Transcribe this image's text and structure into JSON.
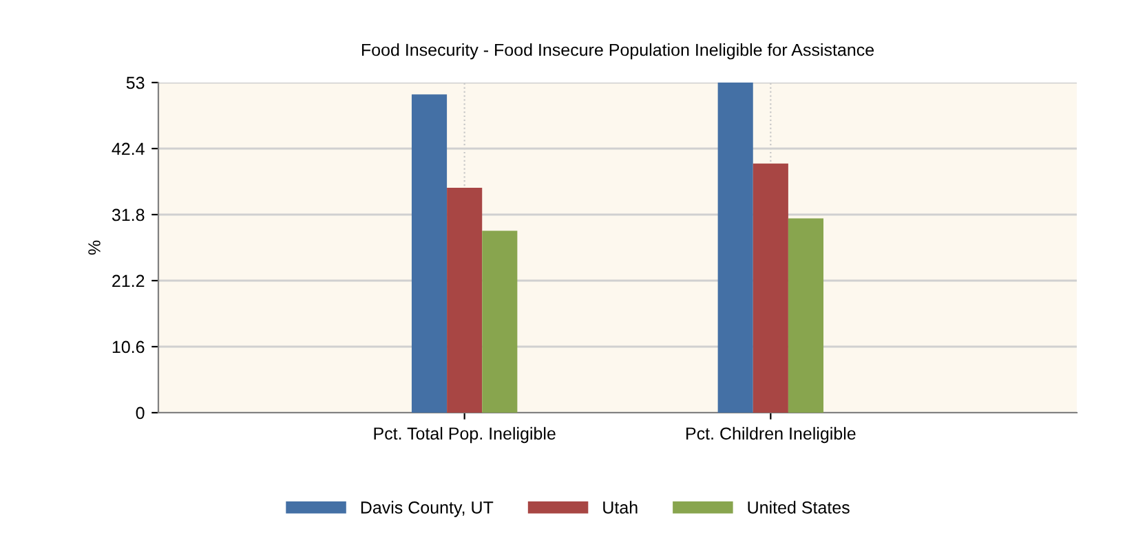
{
  "chart_data": {
    "type": "bar",
    "title": "Food Insecurity - Food Insecure Population Ineligible for Assistance",
    "ylabel": "%",
    "categories": [
      "Pct. Total Pop. Ineligible",
      "Pct. Children Ineligible"
    ],
    "series": [
      {
        "name": "Davis County, UT",
        "color": "#4470a5",
        "values": [
          51.1,
          53
        ]
      },
      {
        "name": "Utah",
        "color": "#a84644",
        "values": [
          36.1,
          40.0
        ]
      },
      {
        "name": "United States",
        "color": "#88a54e",
        "values": [
          29.2,
          31.2
        ]
      }
    ],
    "ylim": [
      0,
      53
    ],
    "yticks": [
      0,
      10.6,
      21.2,
      31.8,
      42.4,
      53
    ],
    "grid": true,
    "legend": "bottom"
  }
}
